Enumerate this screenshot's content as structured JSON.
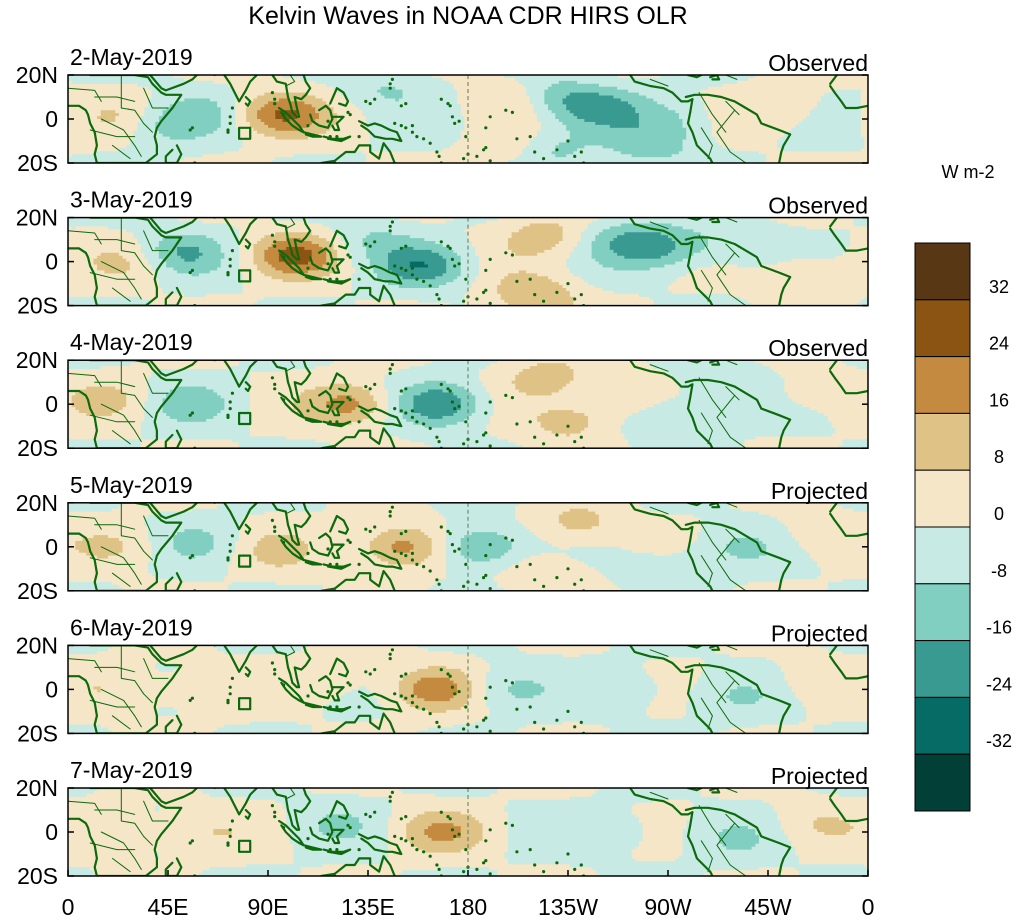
{
  "chart_data": {
    "type": "heatmap",
    "title": "Kelvin Waves in NOAA CDR HIRS OLR",
    "units_label": "W m-2",
    "x_ticks": [
      "0",
      "45E",
      "90E",
      "135E",
      "180",
      "135W",
      "90W",
      "45W",
      "0"
    ],
    "x_range_deg_east": [
      0,
      360
    ],
    "y_ticks": [
      "20N",
      "0",
      "20S"
    ],
    "y_range_deg": [
      -20,
      20
    ],
    "dateline_deg_east": 180,
    "contour_levels": [
      -32,
      -24,
      -16,
      -8,
      0,
      8,
      16,
      24,
      32
    ],
    "colorbar": {
      "labels": [
        "32",
        "24",
        "16",
        "8",
        "0",
        "-8",
        "-16",
        "-24",
        "-32"
      ],
      "colors": [
        "#573714",
        "#8b5413",
        "#c48a3f",
        "#dfc386",
        "#f5e6c7",
        "#c7eae4",
        "#81cfc0",
        "#399a91",
        "#066b64",
        "#023f36"
      ]
    },
    "panels": [
      {
        "date": "2-May-2019",
        "status": "Observed",
        "anomalies": [
          {
            "lon": 95,
            "lat": 2,
            "value": 24
          },
          {
            "lon": 143,
            "lat": 14,
            "value": -8
          },
          {
            "lon": 40,
            "lat": -3,
            "value": -12
          },
          {
            "lon": 60,
            "lat": 3,
            "value": -8
          },
          {
            "lon": 205,
            "lat": 10,
            "value": 16
          },
          {
            "lon": 215,
            "lat": 10,
            "value": -20
          },
          {
            "lon": 205,
            "lat": -14,
            "value": 12
          },
          {
            "lon": 215,
            "lat": -14,
            "value": -16
          },
          {
            "lon": 240,
            "lat": 5,
            "value": -16
          },
          {
            "lon": 262,
            "lat": -12,
            "value": -12
          },
          {
            "lon": 275,
            "lat": 0,
            "value": -8
          },
          {
            "lon": 25,
            "lat": 0,
            "value": 8
          },
          {
            "lon": 320,
            "lat": 5,
            "value": 8
          }
        ]
      },
      {
        "date": "3-May-2019",
        "status": "Observed",
        "anomalies": [
          {
            "lon": 102,
            "lat": 3,
            "value": 24
          },
          {
            "lon": 50,
            "lat": 4,
            "value": -16
          },
          {
            "lon": 160,
            "lat": -2,
            "value": -20
          },
          {
            "lon": 135,
            "lat": 10,
            "value": -8
          },
          {
            "lon": 210,
            "lat": -16,
            "value": 16
          },
          {
            "lon": 215,
            "lat": 12,
            "value": 12
          },
          {
            "lon": 250,
            "lat": 10,
            "value": -12
          },
          {
            "lon": 268,
            "lat": 6,
            "value": -16
          },
          {
            "lon": 300,
            "lat": 8,
            "value": -8
          },
          {
            "lon": 30,
            "lat": 0,
            "value": 8
          },
          {
            "lon": 330,
            "lat": -5,
            "value": 8
          }
        ]
      },
      {
        "date": "4-May-2019",
        "status": "Observed",
        "anomalies": [
          {
            "lon": 128,
            "lat": 0,
            "value": 20
          },
          {
            "lon": 168,
            "lat": 0,
            "value": -24
          },
          {
            "lon": 55,
            "lat": 0,
            "value": -10
          },
          {
            "lon": 215,
            "lat": 12,
            "value": 12
          },
          {
            "lon": 225,
            "lat": -8,
            "value": 12
          },
          {
            "lon": 250,
            "lat": 2,
            "value": 10
          },
          {
            "lon": 270,
            "lat": -6,
            "value": -12
          },
          {
            "lon": 295,
            "lat": 8,
            "value": -8
          },
          {
            "lon": 330,
            "lat": 4,
            "value": 6
          },
          {
            "lon": 20,
            "lat": 2,
            "value": 8
          }
        ]
      },
      {
        "date": "5-May-2019",
        "status": "Projected",
        "anomalies": [
          {
            "lon": 150,
            "lat": 0,
            "value": 22
          },
          {
            "lon": 185,
            "lat": 0,
            "value": -20
          },
          {
            "lon": 95,
            "lat": -2,
            "value": 8
          },
          {
            "lon": 60,
            "lat": 2,
            "value": -8
          },
          {
            "lon": 230,
            "lat": 10,
            "value": 12
          },
          {
            "lon": 215,
            "lat": -12,
            "value": 8
          },
          {
            "lon": 300,
            "lat": 0,
            "value": -8
          },
          {
            "lon": 270,
            "lat": -10,
            "value": -6
          },
          {
            "lon": 335,
            "lat": 5,
            "value": 6
          },
          {
            "lon": 25,
            "lat": 0,
            "value": 8
          }
        ]
      },
      {
        "date": "6-May-2019",
        "status": "Projected",
        "anomalies": [
          {
            "lon": 165,
            "lat": 0,
            "value": 20
          },
          {
            "lon": 195,
            "lat": 0,
            "value": -10
          },
          {
            "lon": 255,
            "lat": 0,
            "value": -6
          },
          {
            "lon": 60,
            "lat": 0,
            "value": 6
          },
          {
            "lon": 120,
            "lat": 4,
            "value": 6
          },
          {
            "lon": 300,
            "lat": -4,
            "value": -6
          },
          {
            "lon": 335,
            "lat": 4,
            "value": 6
          },
          {
            "lon": 25,
            "lat": 0,
            "value": 8
          }
        ]
      },
      {
        "date": "7-May-2019",
        "status": "Projected",
        "anomalies": [
          {
            "lon": 168,
            "lat": 0,
            "value": 14
          },
          {
            "lon": 120,
            "lat": 4,
            "value": -6
          },
          {
            "lon": 250,
            "lat": 0,
            "value": -6
          },
          {
            "lon": 300,
            "lat": -4,
            "value": -6
          },
          {
            "lon": 60,
            "lat": 0,
            "value": 6
          },
          {
            "lon": 335,
            "lat": 4,
            "value": 6
          },
          {
            "lon": 25,
            "lat": 0,
            "value": 8
          }
        ]
      }
    ]
  }
}
